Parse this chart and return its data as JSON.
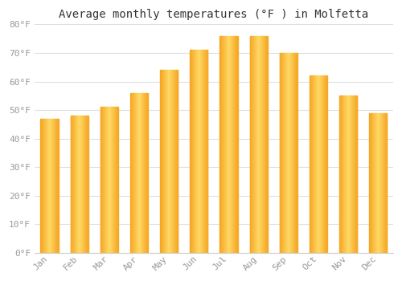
{
  "title": "Average monthly temperatures (°F ) in Molfetta",
  "months": [
    "Jan",
    "Feb",
    "Mar",
    "Apr",
    "May",
    "Jun",
    "Jul",
    "Aug",
    "Sep",
    "Oct",
    "Nov",
    "Dec"
  ],
  "values": [
    47,
    48,
    51,
    56,
    64,
    71,
    76,
    76,
    70,
    62,
    55,
    49
  ],
  "bar_color_center": "#FFD966",
  "bar_color_edge": "#F5A623",
  "ylim": [
    0,
    80
  ],
  "yticks": [
    0,
    10,
    20,
    30,
    40,
    50,
    60,
    70,
    80
  ],
  "background_color": "#ffffff",
  "grid_color": "#e0e0e0",
  "title_fontsize": 10,
  "tick_fontsize": 8,
  "tick_color": "#999999",
  "font_family": "monospace"
}
